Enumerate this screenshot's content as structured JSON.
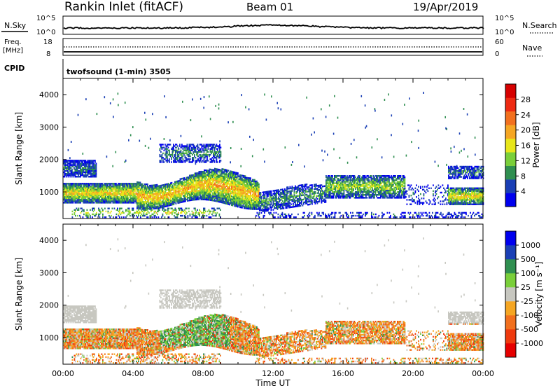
{
  "header": {
    "station": "Rankin Inlet (fitACF)",
    "beam": "Beam 01",
    "date": "19/Apr/2019"
  },
  "noise_panel": {
    "left_label": "N.Sky",
    "right_label": "N.Search",
    "left_ticks": [
      "10^5",
      "10^0"
    ],
    "right_ticks": [
      "10^5",
      "10^0"
    ]
  },
  "freq_panel": {
    "left_label_1": "Freq.",
    "left_label_2": "[MHz]",
    "right_label": "Nave",
    "left_ticks": [
      "18",
      "8"
    ],
    "right_ticks": [
      "60",
      "0"
    ]
  },
  "cpid": {
    "label": "CPID",
    "text": "twofsound (1-min) 3505"
  },
  "colors": {
    "power": [
      "#0000ee",
      "#1a3fb5",
      "#2f8f50",
      "#7acf3a",
      "#e8e61a",
      "#f5a623",
      "#f2701e",
      "#ee2a12",
      "#d60000"
    ],
    "velocity": [
      "#e60000",
      "#ef3a0e",
      "#f2701e",
      "#f5a623",
      "#c7c7c0",
      "#7acf3a",
      "#2f8f50",
      "#1a3fb5",
      "#0000ee"
    ]
  },
  "chart_data": [
    {
      "type": "heatmap",
      "name": "power",
      "xlabel": "Time UT",
      "ylabel": "Slant Range [km]",
      "xlim_hours": [
        0,
        24
      ],
      "ylim": [
        180,
        4500
      ],
      "x_ticks": [
        "00:00",
        "04:00",
        "08:00",
        "12:00",
        "16:00",
        "20:00",
        "00:00"
      ],
      "y_ticks": [
        1000,
        2000,
        3000,
        4000
      ],
      "colorbar": {
        "label": "Power [dB]",
        "range": [
          0,
          32
        ],
        "ticks": [
          "4",
          "8",
          "12",
          "16",
          "20",
          "24",
          "28"
        ]
      }
    },
    {
      "type": "heatmap",
      "name": "velocity",
      "xlabel": "Time UT",
      "ylabel": "Slant Range [km]",
      "xlim_hours": [
        0,
        24
      ],
      "ylim": [
        180,
        4500
      ],
      "x_ticks": [
        "00:00",
        "04:00",
        "08:00",
        "12:00",
        "16:00",
        "20:00",
        "00:00"
      ],
      "y_ticks": [
        1000,
        2000,
        3000,
        4000
      ],
      "colorbar": {
        "label": "Velocity [m s⁻¹]",
        "ticks": [
          "1000",
          "500",
          "100",
          "25",
          "-25",
          "-100",
          "-500",
          "-1000"
        ]
      }
    }
  ]
}
